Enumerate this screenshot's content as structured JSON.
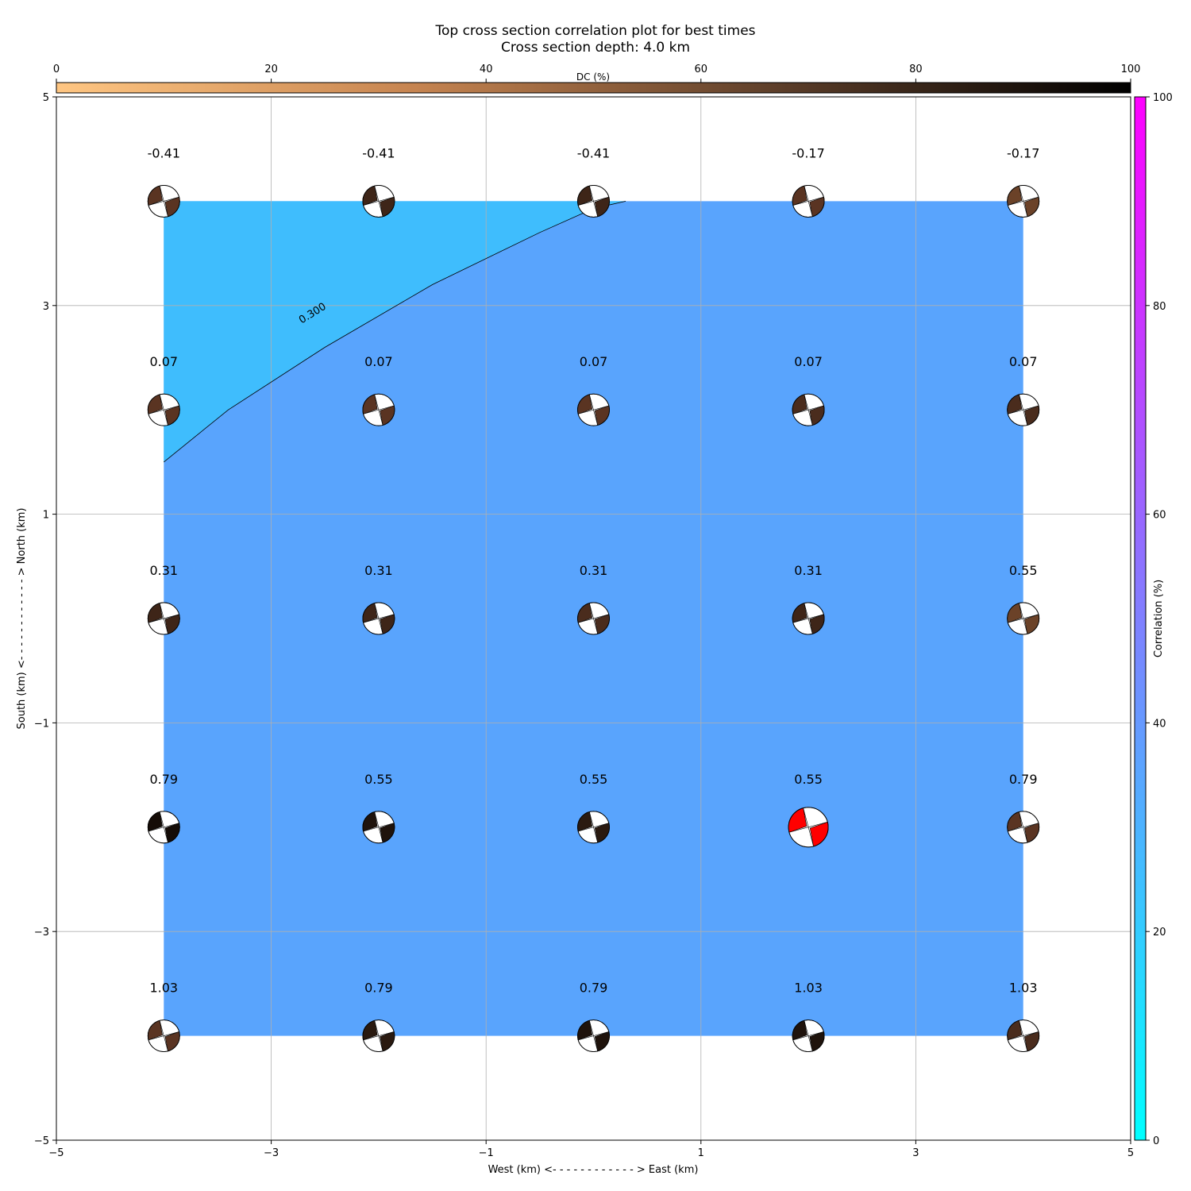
{
  "chart_data": {
    "type": "heatmap",
    "title": "Top cross section correlation plot for best times",
    "subtitle": "Cross section depth: 4.0 km",
    "xlabel": "West (km) <- - - - - - - - - - - - > East (km)",
    "ylabel": "South (km) <- - - - - - - - - - - - > North (km)",
    "xlim": [
      -5,
      5
    ],
    "ylim": [
      -5,
      5
    ],
    "xticks": [
      "−5",
      "−3",
      "−1",
      "1",
      "3",
      "5"
    ],
    "yticks": [
      "−5",
      "−3",
      "−1",
      "1",
      "3",
      "5"
    ],
    "grid": true,
    "x": [
      -4,
      -2,
      0,
      2,
      4
    ],
    "y": [
      4,
      2,
      0,
      -2,
      -4
    ],
    "correlation_labels": [
      [
        "-0.41",
        "-0.41",
        "-0.41",
        "-0.17",
        "-0.17"
      ],
      [
        "0.07",
        "0.07",
        "0.07",
        "0.07",
        "0.07"
      ],
      [
        "0.31",
        "0.31",
        "0.31",
        "0.31",
        "0.55"
      ],
      [
        "0.79",
        "0.55",
        "0.55",
        "0.55",
        "0.79"
      ],
      [
        "1.03",
        "0.79",
        "0.79",
        "1.03",
        "1.03"
      ]
    ],
    "best_solution": {
      "x": 2,
      "y": -2,
      "color": "#ff0000"
    },
    "beachball_shading": [
      [
        "#5a3422",
        "#3e2518",
        "#3e2518",
        "#5a3422",
        "#6b4228"
      ],
      [
        "#5a3422",
        "#5a3422",
        "#5a3422",
        "#4a2c1d",
        "#4a2c1d"
      ],
      [
        "#3e2518",
        "#3e2518",
        "#4a2c1d",
        "#3e2518",
        "#6b4228"
      ],
      [
        "#150c07",
        "#1f130c",
        "#2a1a10",
        "#ff0000",
        "#5a3422"
      ],
      [
        "#5a3422",
        "#2a1a10",
        "#1f130c",
        "#1f130c",
        "#4a2c1d"
      ]
    ],
    "regions": [
      {
        "level": "below 0.300",
        "color": "#3fbdfd"
      },
      {
        "level": "above 0.300",
        "color": "#59a4fd"
      }
    ],
    "contour": {
      "label": "0.300",
      "points": [
        [
          -4,
          1.5
        ],
        [
          -3.7,
          1.75
        ],
        [
          -3.4,
          2.0
        ],
        [
          -2.5,
          2.6
        ],
        [
          -1.5,
          3.2
        ],
        [
          -0.5,
          3.7
        ],
        [
          0,
          3.93
        ],
        [
          0.3,
          4.0
        ]
      ]
    },
    "colorbar_top": {
      "label": "DC (%)",
      "range": [
        0,
        100
      ],
      "ticks": [
        "0",
        "20",
        "40",
        "60",
        "80",
        "100"
      ],
      "colors": [
        "#ffc682",
        "#c68450",
        "#5e3f2a",
        "#000000"
      ]
    },
    "colorbar_right": {
      "label": "Correlation (%)",
      "range": [
        0,
        100
      ],
      "ticks": [
        "0",
        "20",
        "40",
        "60",
        "80",
        "100"
      ],
      "colors": [
        "#00ffff",
        "#ff00ff"
      ]
    }
  }
}
